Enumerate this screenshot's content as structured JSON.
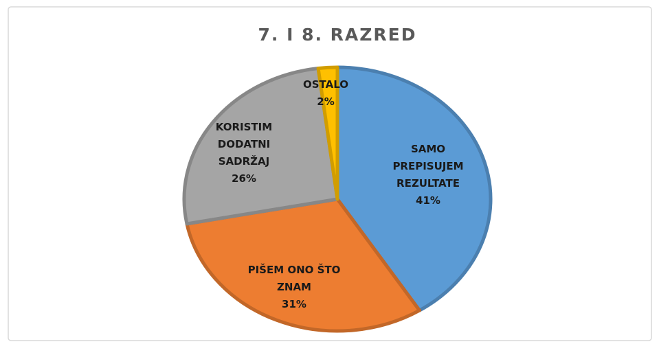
{
  "chart_data": {
    "type": "pie",
    "title": "7. I 8. RAZRED",
    "categories": [
      "SAMO PREPISUJEM REZULTATE",
      "PIŠEM ONO ŠTO ZNAM",
      "KORISTIM DODATNI SADRŽAJ",
      "OSTALO"
    ],
    "values": [
      41,
      31,
      26,
      2
    ],
    "value_labels": [
      "41%",
      "31%",
      "26%",
      "2%"
    ],
    "colors": [
      "#5b9bd5",
      "#ed7d31",
      "#a5a5a5",
      "#ffc000"
    ]
  }
}
